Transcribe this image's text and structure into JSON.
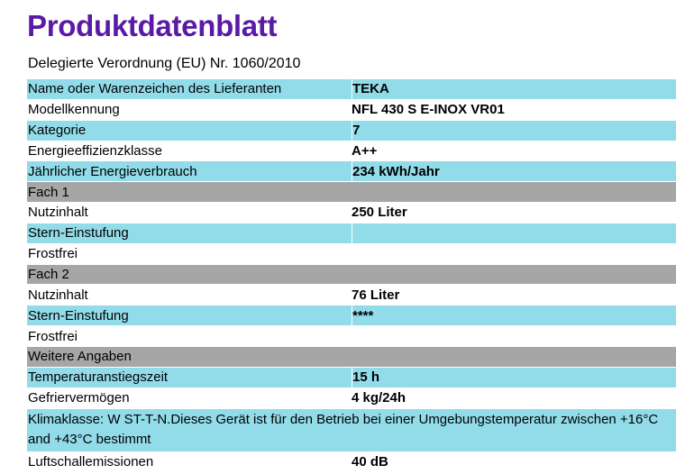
{
  "title": "Produktdatenblatt",
  "subtitle": "Delegierte Verordnung (EU) Nr. 1060/2010",
  "rows": [
    {
      "label": "Name oder Warenzeichen des Lieferanten",
      "value": "TEKA"
    },
    {
      "label": "Modellkennung",
      "value": "NFL 430 S E-INOX VR01"
    },
    {
      "label": "Kategorie",
      "value": "7"
    },
    {
      "label": "Energieeffizienzklasse",
      "value": "A++"
    },
    {
      "label": "Jährlicher Energieverbrauch",
      "value": "234 kWh/Jahr"
    },
    {
      "label": "Fach 1",
      "value": ""
    },
    {
      "label": "Nutzinhalt",
      "value": "250 Liter"
    },
    {
      "label": "Stern-Einstufung",
      "value": ""
    },
    {
      "label": "Frostfrei",
      "value": ""
    },
    {
      "label": "Fach 2",
      "value": ""
    },
    {
      "label": "Nutzinhalt",
      "value": "76 Liter"
    },
    {
      "label": "Stern-Einstufung",
      "value": "****"
    },
    {
      "label": "Frostfrei",
      "value": ""
    },
    {
      "label": "Weitere Angaben",
      "value": ""
    },
    {
      "label": "Temperaturanstiegszeit",
      "value": "15 h"
    },
    {
      "label": "Gefriervermögen",
      "value": "4 kg/24h"
    },
    {
      "label": "Klimaklasse: W ST-T-N.Dieses Gerät ist für den Betrieb bei einer Umgebungstemperatur zwischen +16°C and +43°C bestimmt",
      "value": ""
    },
    {
      "label": "Luftschallemissionen",
      "value": "40 dB"
    }
  ],
  "colors": {
    "title": "#5a1aa6",
    "cyan": "#92dcea",
    "gray": "#a6a6a6"
  }
}
